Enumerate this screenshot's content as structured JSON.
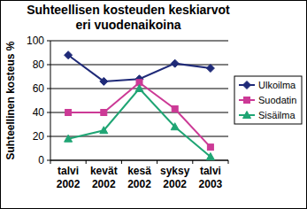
{
  "chart_data": {
    "type": "line",
    "title": "Suhteellisen kosteuden keskiarvot eri vuodenaikoina",
    "y_label": "Suhteellinen kosteus %",
    "categories": [
      "talvi 2002",
      "kevät 2002",
      "kesä 2002",
      "syksy 2002",
      "talvi 2003"
    ],
    "series": [
      {
        "name": "Ulkoilma",
        "color": "#1f2a78",
        "marker": "diamond",
        "values": [
          88,
          66,
          68,
          81,
          77
        ]
      },
      {
        "name": "Suodatin",
        "color": "#cc3a96",
        "marker": "square",
        "values": [
          40,
          40,
          65,
          43,
          11
        ]
      },
      {
        "name": "Sisäilma",
        "color": "#1fa574",
        "marker": "triangle",
        "values": [
          18,
          25,
          60,
          28,
          3
        ]
      }
    ],
    "ylim": [
      0,
      100
    ],
    "yticks": [
      0,
      20,
      40,
      60,
      80,
      100
    ],
    "grid": true,
    "legend": "right"
  }
}
